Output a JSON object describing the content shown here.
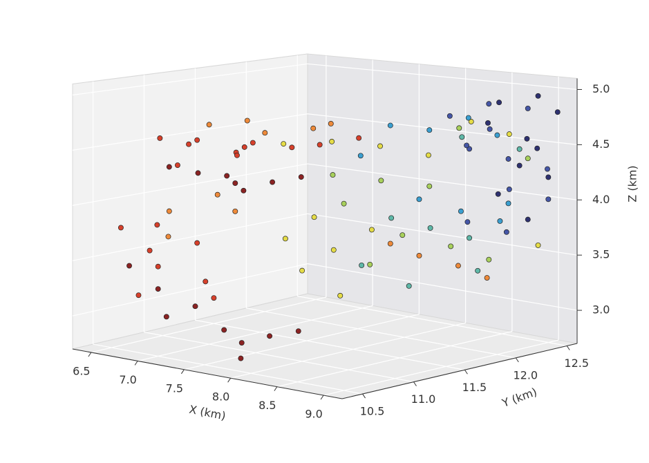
{
  "chart_data": {
    "type": "scatter3d",
    "xlabel": "X (km)",
    "ylabel": "Y (km)",
    "zlabel": "Z (km)",
    "xlim": [
      6.3,
      9.2
    ],
    "ylim": [
      10.3,
      12.6
    ],
    "zlim": [
      2.7,
      5.1
    ],
    "xticks": [
      6.5,
      {
        "value": 7,
        "label": "7.0"
      },
      7.5,
      {
        "value": 8,
        "label": "8.0"
      },
      8.5,
      {
        "value": 9,
        "label": "9.0"
      }
    ],
    "yticks": [
      10.5,
      {
        "value": 11,
        "label": "11.0"
      },
      11.5,
      {
        "value": 12,
        "label": "12.0"
      },
      12.5
    ],
    "zticks": [
      {
        "value": 3,
        "label": "3.0"
      },
      3.5,
      {
        "value": 4,
        "label": "4.0"
      },
      4.5,
      {
        "value": 5,
        "label": "5.0"
      }
    ],
    "grid": true,
    "series": [
      {
        "color": "#8b2323",
        "x": [
          6.9,
          7.1,
          7.3,
          7.5,
          7.7,
          7.9,
          8.1,
          6.8,
          7.0,
          7.2,
          7.6,
          7.9,
          8.2,
          8.4,
          8.0,
          7.4
        ],
        "y": [
          10.7,
          10.8,
          10.9,
          10.8,
          10.7,
          10.8,
          10.9,
          10.4,
          10.5,
          10.4,
          10.6,
          10.5,
          10.5,
          10.6,
          10.4,
          10.5
        ],
        "z": [
          4.35,
          4.3,
          4.28,
          4.25,
          4.22,
          4.3,
          4.35,
          3.5,
          3.3,
          3.1,
          3.0,
          2.95,
          3.05,
          3.1,
          2.85,
          3.2
        ]
      },
      {
        "color": "#d6402b",
        "x": [
          6.8,
          7.0,
          7.2,
          7.4,
          7.6,
          7.8,
          8.0,
          7.3,
          7.1,
          6.6,
          6.8,
          7.0,
          7.2,
          7.4,
          7.6,
          7.1,
          6.9,
          8.3,
          8.5
        ],
        "y": [
          10.7,
          10.8,
          10.7,
          10.9,
          10.8,
          10.7,
          10.9,
          11.0,
          10.6,
          10.5,
          10.6,
          10.5,
          10.7,
          10.6,
          10.5,
          10.4,
          10.4,
          10.9,
          11.1
        ],
        "z": [
          4.6,
          4.55,
          4.62,
          4.5,
          4.58,
          4.65,
          4.6,
          4.45,
          4.4,
          3.8,
          3.6,
          3.5,
          3.7,
          3.4,
          3.3,
          3.9,
          3.25,
          4.65,
          4.7
        ]
      },
      {
        "color": "#ee8a3a",
        "x": [
          7.0,
          7.3,
          7.6,
          7.9,
          8.2,
          7.2,
          7.5,
          8.6,
          8.8,
          9.0,
          8.4,
          7.0,
          6.9
        ],
        "y": [
          11.0,
          11.1,
          11.0,
          11.2,
          11.1,
          10.9,
          10.8,
          11.6,
          11.8,
          11.9,
          11.5,
          10.6,
          10.7
        ],
        "z": [
          4.7,
          4.75,
          4.68,
          4.72,
          4.8,
          4.1,
          4.0,
          3.6,
          3.5,
          3.4,
          3.7,
          3.75,
          3.95
        ]
      },
      {
        "color": "#e5dc47",
        "x": [
          7.8,
          8.1,
          8.4,
          8.7,
          7.6,
          7.9,
          8.2,
          8.5,
          8.8,
          9.0,
          8.3,
          7.8,
          8.0
        ],
        "y": [
          11.0,
          11.2,
          11.4,
          11.6,
          11.2,
          11.4,
          11.5,
          12.2,
          12.3,
          12.4,
          11.1,
          11.3,
          11.0
        ],
        "z": [
          4.6,
          4.62,
          4.58,
          4.5,
          3.7,
          3.6,
          3.8,
          4.7,
          4.6,
          3.6,
          3.3,
          3.9,
          3.5
        ]
      },
      {
        "color": "#a8d05c",
        "x": [
          8.0,
          8.3,
          8.6,
          8.2,
          8.5,
          8.8,
          7.9,
          8.4,
          8.7,
          9.0
        ],
        "y": [
          11.3,
          11.5,
          11.7,
          11.8,
          12.0,
          12.1,
          11.5,
          11.3,
          11.9,
          12.3
        ],
        "z": [
          4.3,
          4.25,
          4.2,
          3.7,
          3.6,
          3.5,
          4.0,
          3.55,
          4.7,
          4.4
        ]
      },
      {
        "color": "#5fb8a8",
        "x": [
          8.3,
          8.5,
          8.7,
          8.2,
          8.6,
          8.9,
          8.4,
          8.8
        ],
        "y": [
          11.6,
          11.8,
          12.0,
          11.4,
          11.5,
          11.9,
          12.2,
          12.4
        ],
        "z": [
          3.9,
          3.8,
          3.7,
          3.5,
          3.35,
          3.45,
          4.55,
          4.45
        ]
      },
      {
        "color": "#3b9fd0",
        "x": [
          8.4,
          8.6,
          8.8,
          9.0,
          8.5,
          8.7,
          8.9,
          8.3,
          8.6
        ],
        "y": [
          11.5,
          11.7,
          11.9,
          12.0,
          12.1,
          12.3,
          12.2,
          11.3,
          11.6
        ],
        "z": [
          4.75,
          4.7,
          4.8,
          4.65,
          3.9,
          3.8,
          4.0,
          4.5,
          4.1
        ]
      },
      {
        "color": "#4556a6",
        "x": [
          8.6,
          8.8,
          9.0,
          8.7,
          8.9,
          9.1,
          8.8,
          9.0,
          8.9,
          9.1,
          8.7,
          9.0
        ],
        "y": [
          11.9,
          12.1,
          12.3,
          12.0,
          12.2,
          12.4,
          12.3,
          12.5,
          11.8,
          12.0,
          12.2,
          11.7
        ],
        "z": [
          4.8,
          4.9,
          4.85,
          4.5,
          4.4,
          4.3,
          4.1,
          4.0,
          3.9,
          3.8,
          4.65,
          4.6
        ]
      },
      {
        "color": "#2e3170",
        "x": [
          8.8,
          9.0,
          9.1,
          8.9,
          9.1,
          8.8,
          9.0,
          9.1,
          8.9,
          9.0
        ],
        "y": [
          12.2,
          12.4,
          12.5,
          12.0,
          12.3,
          12.4,
          12.5,
          12.2,
          12.1,
          12.3
        ],
        "z": [
          4.9,
          4.95,
          4.8,
          4.75,
          4.5,
          4.3,
          4.2,
          4.6,
          4.1,
          3.85
        ]
      }
    ]
  }
}
